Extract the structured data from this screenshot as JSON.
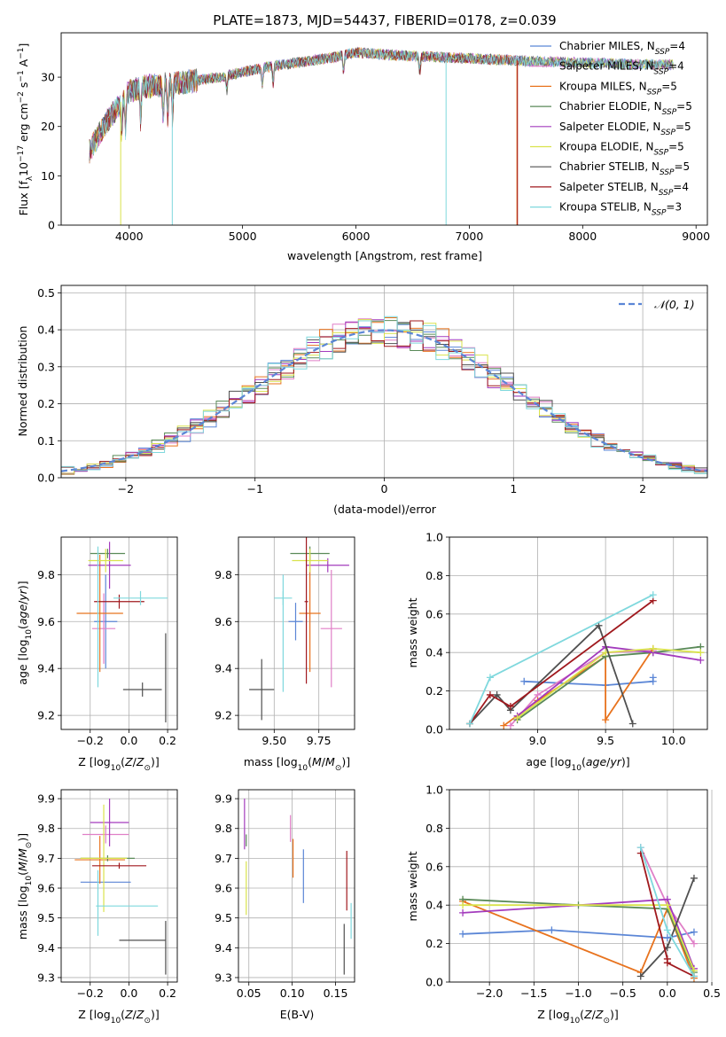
{
  "colors": {
    "chab_miles": "#5b86d6",
    "salp_miles": "#e07fc7",
    "krou_miles": "#e8731e",
    "chab_elodie": "#5a8a58",
    "salp_elodie": "#a33bbd",
    "krou_elodie": "#d9e24b",
    "chab_stelib": "#505050",
    "salp_stelib": "#a0191e",
    "krou_stelib": "#7fd8dd",
    "gauss": "#5b86d6"
  },
  "chart_data": [
    {
      "type": "line",
      "title": "PLATE=1873, MJD=54437, FIBERID=0178, z=0.039",
      "xlabel": "wavelength [Angstrom, rest frame]",
      "ylabel": "Flux [f_λ10^-17 erg cm^-2 s^-1 A^-1]",
      "xlim": [
        3400,
        9100
      ],
      "ylim": [
        0,
        39
      ],
      "xticks": [
        "4000",
        "5000",
        "6000",
        "7000",
        "8000",
        "9000"
      ],
      "yticks": [
        "0",
        "10",
        "20",
        "30"
      ],
      "legend_loc": "right",
      "legend": [
        {
          "key": "chab_miles",
          "label": "Chabrier MILES, N_SSP=4"
        },
        {
          "key": "salp_miles",
          "label": "Salpeter MILES, N_SSP=4"
        },
        {
          "key": "krou_miles",
          "label": "Kroupa MILES, N_SSP=5"
        },
        {
          "key": "chab_elodie",
          "label": "Chabrier ELODIE, N_SSP=5"
        },
        {
          "key": "salp_elodie",
          "label": "Salpeter ELODIE, N_SSP=5"
        },
        {
          "key": "krou_elodie",
          "label": "Kroupa ELODIE, N_SSP=5"
        },
        {
          "key": "chab_stelib",
          "label": "Chabrier STELIB, N_SSP=5"
        },
        {
          "key": "salp_stelib",
          "label": "Salpeter STELIB, N_SSP=4"
        },
        {
          "key": "krou_stelib",
          "label": "Kroupa STELIB, N_SSP=3"
        }
      ],
      "continuum": {
        "x": [
          3650,
          3700,
          3800,
          3900,
          3950,
          4000,
          4100,
          4300,
          4500,
          4800,
          5000,
          5200,
          5500,
          5800,
          6000,
          6300,
          6600,
          6800,
          7000,
          7300,
          7600,
          7900,
          8200,
          8500,
          8800
        ],
        "y": [
          15,
          17,
          21,
          24,
          26,
          27,
          28,
          28.5,
          29,
          30,
          31,
          32,
          33,
          34,
          35,
          34.5,
          34.2,
          34,
          33.8,
          33.5,
          33.2,
          33,
          32.8,
          32.6,
          32.5
        ]
      },
      "dips": [
        {
          "key": "krou_elodie",
          "x": 3925,
          "y": 0
        },
        {
          "key": "krou_stelib",
          "x": 4380,
          "y": 0
        },
        {
          "key": "krou_stelib",
          "x": 6795,
          "y": 0
        },
        {
          "key": "krou_miles",
          "x": 7420,
          "y": 0
        },
        {
          "key": "salp_stelib",
          "x": 7425,
          "y": 0
        }
      ]
    },
    {
      "type": "line",
      "xlabel": "(data-model)/error",
      "ylabel": "Normed distribution",
      "xlim": [
        -2.5,
        2.5
      ],
      "ylim": [
        0,
        0.52
      ],
      "xticks": [
        -2,
        -1,
        0,
        1,
        2
      ],
      "yticks": [
        0,
        0.1,
        0.2,
        0.3,
        0.4,
        0.5
      ],
      "legend": "𝒩(0, 1)",
      "legend_loc": "top-right",
      "bin_width": 0.1
    },
    {
      "type": "scatter",
      "xlabel": "Z [log10(Z/Z⊙)]",
      "ylabel": "age  [log10(age/yr)]",
      "xlim": [
        -0.35,
        0.25
      ],
      "ylim": [
        9.14,
        9.96
      ],
      "xticks": [
        -0.2,
        0.0,
        0.2
      ],
      "yticks": [
        9.2,
        9.4,
        9.6,
        9.8
      ],
      "points": [
        {
          "key": "chab_miles",
          "x": -0.12,
          "y": 9.6,
          "xerr": 0.06,
          "yerr": 0.2
        },
        {
          "key": "salp_miles",
          "x": -0.13,
          "y": 9.57,
          "xerr": 0.06,
          "yerr": 0.15
        },
        {
          "key": "krou_miles",
          "x": -0.15,
          "y": 9.635,
          "xerr": 0.12,
          "yerr": 0.25
        },
        {
          "key": "chab_elodie",
          "x": -0.11,
          "y": 9.89,
          "xerr": 0.09,
          "yerr": 0.02
        },
        {
          "key": "salp_elodie",
          "x": -0.1,
          "y": 9.84,
          "xerr": 0.11,
          "yerr": 0.1
        },
        {
          "key": "krou_elodie",
          "x": -0.12,
          "y": 9.86,
          "xerr": 0.09,
          "yerr": 0.05
        },
        {
          "key": "chab_stelib",
          "x": 0.07,
          "y": 9.31,
          "xerr": 0.1,
          "yerr": 0.03
        },
        {
          "key": "chab_stelib",
          "x": 0.19,
          "y": 9.36,
          "xerr": 0.005,
          "yerr": 0.19
        },
        {
          "key": "salp_stelib",
          "x": -0.05,
          "y": 9.685,
          "xerr": 0.13,
          "yerr": 0.03
        },
        {
          "key": "krou_stelib",
          "x": 0.06,
          "y": 9.7,
          "xerr": 0.14,
          "yerr": 0.03
        },
        {
          "key": "krou_stelib",
          "x": -0.16,
          "y": 9.62,
          "xerr": 0.005,
          "yerr": 0.3
        }
      ]
    },
    {
      "type": "scatter",
      "xlabel": "mass [log10(M/M⊙)]",
      "xlim": [
        9.3,
        9.95
      ],
      "ylim": [
        9.14,
        9.96
      ],
      "xticks": [
        9.5,
        9.75
      ],
      "yticks": [
        9.2,
        9.4,
        9.6,
        9.8
      ],
      "points": [
        {
          "key": "chab_miles",
          "x": 9.62,
          "y": 9.6,
          "xerr": 0.04,
          "yerr": 0.08
        },
        {
          "key": "salp_miles",
          "x": 9.82,
          "y": 9.57,
          "xerr": 0.06,
          "yerr": 0.25
        },
        {
          "key": "krou_miles",
          "x": 9.7,
          "y": 9.635,
          "xerr": 0.06,
          "yerr": 0.25
        },
        {
          "key": "chab_elodie",
          "x": 9.7,
          "y": 9.89,
          "xerr": 0.11,
          "yerr": 0.03
        },
        {
          "key": "salp_elodie",
          "x": 9.8,
          "y": 9.84,
          "xerr": 0.12,
          "yerr": 0.03
        },
        {
          "key": "krou_elodie",
          "x": 9.7,
          "y": 9.86,
          "xerr": 0.1,
          "yerr": 0.05
        },
        {
          "key": "chab_stelib",
          "x": 9.43,
          "y": 9.31,
          "xerr": 0.07,
          "yerr": 0.13
        },
        {
          "key": "salp_stelib",
          "x": 9.68,
          "y": 9.685,
          "xerr": 0.01,
          "yerr": 0.35
        },
        {
          "key": "krou_stelib",
          "x": 9.55,
          "y": 9.7,
          "xerr": 0.05,
          "yerr": 0.03
        },
        {
          "key": "krou_stelib",
          "x": 9.55,
          "y": 9.55,
          "xerr": 0.005,
          "yerr": 0.25
        }
      ]
    },
    {
      "type": "line",
      "xlabel": "age  [log10(age/yr)]",
      "ylabel": "mass weight",
      "xlim": [
        8.35,
        10.25
      ],
      "ylim": [
        0,
        1.0
      ],
      "xticks": [
        9.0,
        9.5,
        10.0
      ],
      "yticks": [
        0.0,
        0.2,
        0.4,
        0.6,
        0.8,
        1.0
      ],
      "series": [
        {
          "key": "chab_miles",
          "x": [
            8.9,
            9.5,
            9.85,
            9.85
          ],
          "y": [
            0.25,
            0.23,
            0.25,
            0.27
          ]
        },
        {
          "key": "salp_miles",
          "x": [
            8.8,
            9.0,
            9.5,
            9.85
          ],
          "y": [
            0.02,
            0.18,
            0.4,
            0.41
          ]
        },
        {
          "key": "krou_miles",
          "x": [
            8.75,
            9.0,
            9.5,
            9.5,
            9.85
          ],
          "y": [
            0.02,
            0.15,
            0.38,
            0.05,
            0.42
          ]
        },
        {
          "key": "chab_elodie",
          "x": [
            8.85,
            9.5,
            9.85,
            10.2
          ],
          "y": [
            0.05,
            0.38,
            0.4,
            0.43
          ]
        },
        {
          "key": "salp_elodie",
          "x": [
            8.85,
            9.5,
            9.85,
            10.2
          ],
          "y": [
            0.07,
            0.43,
            0.4,
            0.36
          ]
        },
        {
          "key": "krou_elodie",
          "x": [
            8.85,
            9.5,
            9.85,
            10.2
          ],
          "y": [
            0.06,
            0.4,
            0.42,
            0.4
          ]
        },
        {
          "key": "chab_stelib",
          "x": [
            8.5,
            8.7,
            8.8,
            9.45,
            9.7
          ],
          "y": [
            0.03,
            0.18,
            0.1,
            0.54,
            0.03
          ]
        },
        {
          "key": "salp_stelib",
          "x": [
            8.5,
            8.65,
            8.8,
            9.85
          ],
          "y": [
            0.03,
            0.18,
            0.12,
            0.67
          ]
        },
        {
          "key": "krou_stelib",
          "x": [
            8.5,
            8.65,
            9.85
          ],
          "y": [
            0.03,
            0.27,
            0.7
          ]
        }
      ]
    },
    {
      "type": "scatter",
      "xlabel": "Z [log10(Z/Z⊙)]",
      "ylabel": "mass [log10(M/M⊙)]",
      "xlim": [
        -0.35,
        0.25
      ],
      "ylim": [
        9.285,
        9.93
      ],
      "xticks": [
        -0.2,
        0.0,
        0.2
      ],
      "yticks": [
        9.3,
        9.4,
        9.5,
        9.6,
        9.7,
        9.8,
        9.9
      ],
      "points": [
        {
          "key": "chab_miles",
          "x": -0.12,
          "y": 9.62,
          "xerr": 0.13,
          "yerr": 0.005
        },
        {
          "key": "salp_miles",
          "x": -0.12,
          "y": 9.78,
          "xerr": 0.12,
          "yerr": 0.03
        },
        {
          "key": "krou_miles",
          "x": -0.15,
          "y": 9.695,
          "xerr": 0.13,
          "yerr": 0.08
        },
        {
          "key": "chab_elodie",
          "x": -0.11,
          "y": 9.7,
          "xerr": 0.14,
          "yerr": 0.01
        },
        {
          "key": "salp_elodie",
          "x": -0.1,
          "y": 9.82,
          "xerr": 0.1,
          "yerr": 0.08
        },
        {
          "key": "krou_elodie",
          "x": -0.13,
          "y": 9.7,
          "xerr": 0.12,
          "yerr": 0.18
        },
        {
          "key": "chab_stelib",
          "x": 0.07,
          "y": 9.425,
          "xerr": 0.12,
          "yerr": 0.005
        },
        {
          "key": "chab_stelib",
          "x": 0.19,
          "y": 9.4,
          "xerr": 0.005,
          "yerr": 0.09
        },
        {
          "key": "salp_stelib",
          "x": -0.05,
          "y": 9.675,
          "xerr": 0.14,
          "yerr": 0.01
        },
        {
          "key": "krou_stelib",
          "x": -0.01,
          "y": 9.54,
          "xerr": 0.16,
          "yerr": 0.005
        },
        {
          "key": "krou_stelib",
          "x": -0.16,
          "y": 9.55,
          "xerr": 0.005,
          "yerr": 0.11
        }
      ]
    },
    {
      "type": "scatter",
      "xlabel": "E(B-V)",
      "xlim": [
        0.038,
        0.172
      ],
      "ylim": [
        9.285,
        9.93
      ],
      "xticks": [
        0.05,
        0.1,
        0.15
      ],
      "yticks": [
        9.3,
        9.4,
        9.5,
        9.6,
        9.7,
        9.8,
        9.9
      ],
      "points": [
        {
          "key": "chab_miles",
          "x": 0.113,
          "y": 9.64,
          "yerr": 0.09
        },
        {
          "key": "salp_miles",
          "x": 0.098,
          "y": 9.8,
          "yerr": 0.045
        },
        {
          "key": "krou_miles",
          "x": 0.101,
          "y": 9.7,
          "yerr": 0.065
        },
        {
          "key": "chab_elodie",
          "x": 0.047,
          "y": 9.76,
          "yerr": 0.02
        },
        {
          "key": "salp_elodie",
          "x": 0.045,
          "y": 9.815,
          "yerr": 0.085
        },
        {
          "key": "krou_elodie",
          "x": 0.047,
          "y": 9.6,
          "yerr": 0.09
        },
        {
          "key": "chab_stelib",
          "x": 0.16,
          "y": 9.395,
          "yerr": 0.085
        },
        {
          "key": "salp_stelib",
          "x": 0.163,
          "y": 9.625,
          "yerr": 0.1
        },
        {
          "key": "krou_stelib",
          "x": 0.168,
          "y": 9.49,
          "yerr": 0.06
        }
      ]
    },
    {
      "type": "line",
      "xlabel": "Z [log10(Z/Z⊙)]",
      "ylabel": "mass weight",
      "xlim": [
        -2.45,
        0.45
      ],
      "ylim": [
        0,
        1.0
      ],
      "xticks": [
        -2.0,
        -1.5,
        -1.0,
        -0.5,
        0.0,
        0.5
      ],
      "yticks": [
        0.0,
        0.2,
        0.4,
        0.6,
        0.8,
        1.0
      ],
      "series": [
        {
          "key": "chab_miles",
          "x": [
            -2.3,
            -1.3,
            0.0,
            0.3
          ],
          "y": [
            0.25,
            0.27,
            0.23,
            0.26
          ]
        },
        {
          "key": "salp_miles",
          "x": [
            -0.3,
            0.0,
            0.3
          ],
          "y": [
            0.7,
            0.4,
            0.2
          ]
        },
        {
          "key": "krou_miles",
          "x": [
            -2.3,
            -0.3,
            0.0,
            0.3
          ],
          "y": [
            0.42,
            0.05,
            0.38,
            0.02
          ]
        },
        {
          "key": "chab_elodie",
          "x": [
            -2.3,
            -1.0,
            0.0,
            0.3
          ],
          "y": [
            0.43,
            0.4,
            0.38,
            0.05
          ]
        },
        {
          "key": "salp_elodie",
          "x": [
            -2.3,
            0.0,
            0.3
          ],
          "y": [
            0.36,
            0.43,
            0.07
          ]
        },
        {
          "key": "krou_elodie",
          "x": [
            -2.3,
            0.0,
            0.3
          ],
          "y": [
            0.4,
            0.4,
            0.06
          ]
        },
        {
          "key": "chab_stelib",
          "x": [
            -0.3,
            0.0,
            0.3
          ],
          "y": [
            0.03,
            0.18,
            0.54
          ]
        },
        {
          "key": "salp_stelib",
          "x": [
            -0.3,
            0.0,
            0.0,
            0.3
          ],
          "y": [
            0.67,
            0.12,
            0.1,
            0.03
          ]
        },
        {
          "key": "krou_stelib",
          "x": [
            -0.3,
            0.0,
            0.3
          ],
          "y": [
            0.7,
            0.27,
            0.03
          ]
        }
      ]
    }
  ]
}
